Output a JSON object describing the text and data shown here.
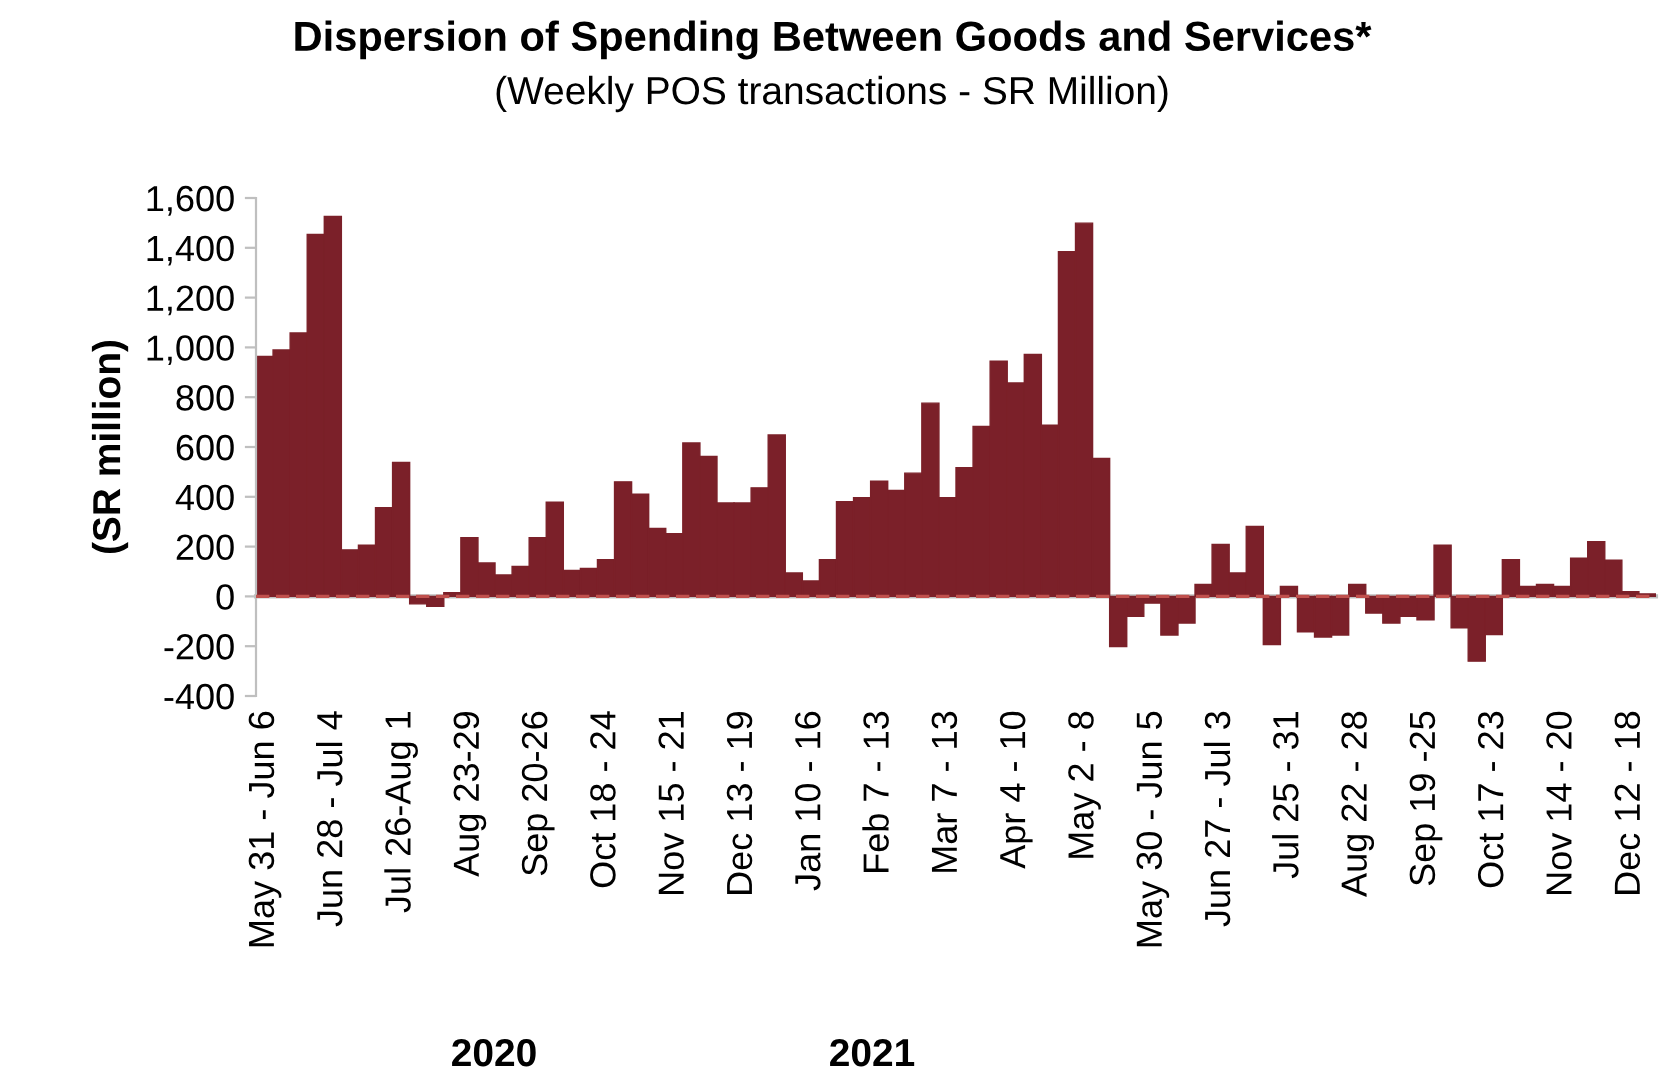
{
  "chart_data": {
    "type": "bar",
    "title": "Dispersion of Spending Between Goods and Services*",
    "subtitle": "(Weekly POS transactions - SR Million)",
    "ylabel": "(SR million)",
    "categories": [
      "May 31 - Jun 6",
      null,
      null,
      null,
      "Jun 28 - Jul 4",
      null,
      null,
      null,
      "Jul 26-Aug 1",
      null,
      null,
      null,
      "Aug 23-29",
      null,
      null,
      null,
      "Sep 20-26",
      null,
      null,
      null,
      "Oct 18 - 24",
      null,
      null,
      null,
      "Nov 15 - 21",
      null,
      null,
      null,
      "Dec 13 - 19",
      null,
      null,
      null,
      "Jan 10 - 16",
      null,
      null,
      null,
      "Feb 7 - 13",
      null,
      null,
      null,
      "Mar 7 - 13",
      null,
      null,
      null,
      "Apr 4 - 10",
      null,
      null,
      null,
      "May 2 - 8",
      null,
      null,
      null,
      "May 30 - Jun 5",
      null,
      null,
      null,
      "Jun 27 - Jul 3",
      null,
      null,
      null,
      "Jul 25 - 31",
      null,
      null,
      null,
      "Aug 22 - 28",
      null,
      null,
      null,
      "Sep 19 -25",
      null,
      null,
      null,
      "Oct 17 - 23",
      null,
      null,
      null,
      "Nov 14 - 20",
      null,
      null,
      null,
      "Dec 12 - 18",
      null
    ],
    "values": [
      964,
      990,
      1058,
      1454,
      1526,
      187,
      206,
      356,
      538,
      -30,
      -40,
      15,
      236,
      134,
      86,
      120,
      236,
      378,
      104,
      112,
      147,
      460,
      410,
      273,
      252,
      616,
      562,
      375,
      375,
      436,
      648,
      94,
      62,
      147,
      380,
      396,
      463,
      426,
      495,
      776,
      396,
      517,
      683,
      945,
      857,
      972,
      688,
      1384,
      1499,
      554,
      -201,
      -80,
      -27,
      -155,
      -107,
      48,
      209,
      94,
      281,
      -193,
      40,
      -142,
      -163,
      -155,
      48,
      -67,
      -107,
      -80,
      -94,
      206,
      -126,
      -260,
      -153,
      147,
      40,
      48,
      40,
      153,
      220,
      145,
      19,
      10
    ],
    "color": "#7b2029",
    "ylim": [
      -400,
      1600
    ],
    "yticks": [
      {
        "value": -400,
        "label": "-400"
      },
      {
        "value": -200,
        "label": "-200"
      },
      0,
      200,
      400,
      600,
      800,
      {
        "value": 1000,
        "label": "1,000"
      },
      {
        "value": 1200,
        "label": "1,200"
      },
      {
        "value": 1400,
        "label": "1,400"
      },
      {
        "value": 1600,
        "label": "1,600"
      }
    ],
    "ref_lines": [
      {
        "axis": "y",
        "value": 0,
        "color": "#c0504d",
        "line_style": "dashed"
      }
    ],
    "annotations": [
      "2020",
      "2021"
    ],
    "grid": false
  }
}
